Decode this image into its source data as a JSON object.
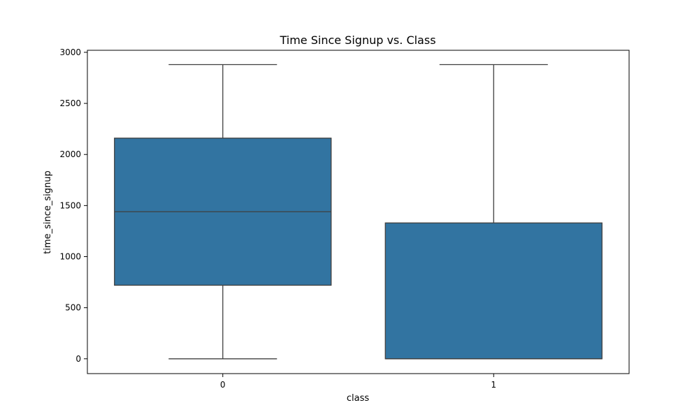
{
  "chart_data": {
    "type": "box",
    "title": "Time Since Signup vs. Class",
    "xlabel": "class",
    "ylabel": "time_since_signup",
    "categories": [
      "0",
      "1"
    ],
    "boxes": [
      {
        "category": "0",
        "min": 0,
        "q1": 720,
        "median": 1440,
        "q3": 2160,
        "max": 2880
      },
      {
        "category": "1",
        "min": 0,
        "q1": 0,
        "median": 0,
        "q3": 1330,
        "max": 2880
      }
    ],
    "ylim": [
      -145,
      3020
    ],
    "yticks": [
      0,
      500,
      1000,
      1500,
      2000,
      2500,
      3000
    ],
    "box_color": "#3274a1",
    "line_color": "#3f3f3f",
    "grid": false,
    "legend": "none"
  }
}
